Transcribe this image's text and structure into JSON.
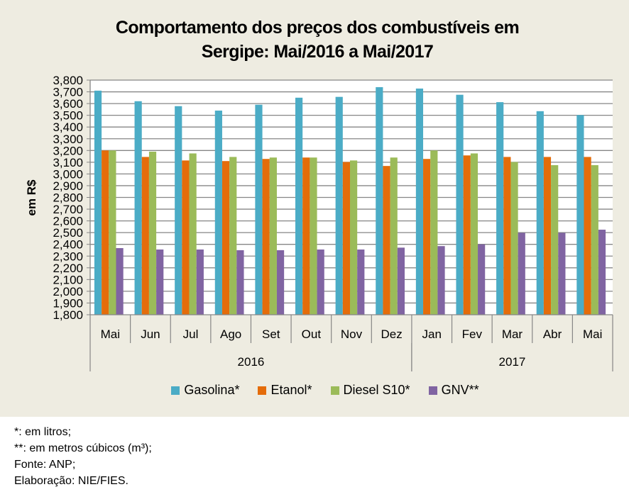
{
  "chart_data": {
    "type": "bar",
    "title": "Comportamento dos preços dos combustíveis em Sergipe: Mai/2016 a Mai/2017",
    "title_lines": [
      "Comportamento dos preços dos combustíveis em",
      "Sergipe: Mai/2016 a Mai/2017"
    ],
    "xlabel": "",
    "ylabel": "em R$",
    "ylim": [
      1800,
      3800
    ],
    "ytick_step": 100,
    "yticks": [
      "1,800",
      "1,900",
      "2,000",
      "2,100",
      "2,200",
      "2,300",
      "2,400",
      "2,500",
      "2,600",
      "2,700",
      "2,800",
      "2,900",
      "3,000",
      "3,100",
      "3,200",
      "3,300",
      "3,400",
      "3,500",
      "3,600",
      "3,700",
      "3,800"
    ],
    "grid": true,
    "legend_position": "bottom",
    "categories": [
      "Mai",
      "Jun",
      "Jul",
      "Ago",
      "Set",
      "Out",
      "Nov",
      "Dez",
      "Jan",
      "Fev",
      "Mar",
      "Abr",
      "Mai"
    ],
    "year_groups": [
      {
        "label": "2016",
        "count": 8
      },
      {
        "label": "2017",
        "count": 5
      }
    ],
    "series": [
      {
        "name": "Gasolina*",
        "color": "#4BACC6",
        "values": [
          3710,
          3620,
          3578,
          3540,
          3590,
          3650,
          3657,
          3740,
          3728,
          3675,
          3612,
          3535,
          3502
        ]
      },
      {
        "name": "Etanol*",
        "color": "#E46C0A",
        "values": [
          3200,
          3145,
          3115,
          3110,
          3128,
          3140,
          3102,
          3068,
          3128,
          3158,
          3145,
          3145,
          3145
        ]
      },
      {
        "name": "Diesel S10*",
        "color": "#9BBB59",
        "values": [
          3200,
          3190,
          3175,
          3145,
          3140,
          3140,
          3115,
          3140,
          3200,
          3175,
          3102,
          3075,
          3075
        ]
      },
      {
        "name": "GNV**",
        "color": "#8064A2",
        "values": [
          2368,
          2356,
          2356,
          2350,
          2350,
          2356,
          2356,
          2372,
          2385,
          2400,
          2498,
          2498,
          2525
        ]
      }
    ]
  },
  "footnotes": [
    "*: em litros;",
    "**: em metros cúbicos (m³);",
    "Fonte: ANP;",
    "Elaboração: NIE/FIES."
  ]
}
